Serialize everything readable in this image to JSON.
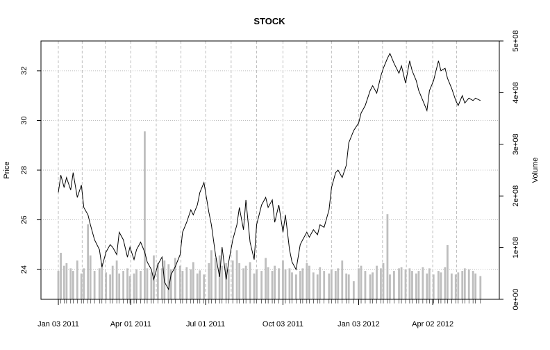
{
  "chart_data": {
    "type": "line",
    "title": "STOCK",
    "ylabel": "Price",
    "y2label": "Volume",
    "xlim": [
      "2011-01-03",
      "2012-05-31"
    ],
    "ylim": [
      22.8,
      33.2
    ],
    "y2lim": [
      0,
      500000000
    ],
    "grid": true,
    "yticks": [
      24,
      26,
      28,
      30,
      32
    ],
    "y2ticks": [
      {
        "value": 0,
        "label": "0e+00"
      },
      {
        "value": 100000000,
        "label": "1e+08"
      },
      {
        "value": 200000000,
        "label": "2e+08"
      },
      {
        "value": 300000000,
        "label": "3e+08"
      },
      {
        "value": 400000000,
        "label": "4e+08"
      },
      {
        "value": 500000000,
        "label": "5e+08"
      }
    ],
    "xticks": [
      {
        "date": "2011-01-03",
        "label": "Jan 03 2011"
      },
      {
        "date": "2011-04-01",
        "label": "Apr 01 2011"
      },
      {
        "date": "2011-07-01",
        "label": "Jul 01 2011"
      },
      {
        "date": "2011-10-03",
        "label": "Oct 03 2011"
      },
      {
        "date": "2012-01-03",
        "label": "Jan 03 2012"
      },
      {
        "date": "2012-04-02",
        "label": "Apr 02 2012"
      }
    ],
    "minor_grid_dates": [
      "2011-02-01",
      "2011-03-01",
      "2011-05-02",
      "2011-06-01",
      "2011-08-01",
      "2011-09-01",
      "2011-11-01",
      "2011-12-01",
      "2012-02-01",
      "2012-03-01",
      "2012-05-01"
    ],
    "colors": {
      "price": "#000000",
      "volume": "#bebebe",
      "grid": "#bebebe"
    },
    "series": [
      {
        "key": "price",
        "x": [
          "2011-01-03",
          "2011-01-06",
          "2011-01-10",
          "2011-01-13",
          "2011-01-18",
          "2011-01-21",
          "2011-01-26",
          "2011-01-31",
          "2011-02-03",
          "2011-02-08",
          "2011-02-11",
          "2011-02-16",
          "2011-02-22",
          "2011-02-25",
          "2011-03-02",
          "2011-03-07",
          "2011-03-10",
          "2011-03-15",
          "2011-03-18",
          "2011-03-23",
          "2011-03-28",
          "2011-03-31",
          "2011-04-05",
          "2011-04-08",
          "2011-04-13",
          "2011-04-18",
          "2011-04-21",
          "2011-04-26",
          "2011-04-29",
          "2011-05-04",
          "2011-05-09",
          "2011-05-12",
          "2011-05-17",
          "2011-05-20",
          "2011-05-25",
          "2011-05-31",
          "2011-06-03",
          "2011-06-08",
          "2011-06-13",
          "2011-06-16",
          "2011-06-21",
          "2011-06-24",
          "2011-06-29",
          "2011-07-05",
          "2011-07-08",
          "2011-07-13",
          "2011-07-18",
          "2011-07-21",
          "2011-07-26",
          "2011-07-29",
          "2011-08-03",
          "2011-08-08",
          "2011-08-11",
          "2011-08-16",
          "2011-08-19",
          "2011-08-24",
          "2011-08-29",
          "2011-09-01",
          "2011-09-07",
          "2011-09-12",
          "2011-09-15",
          "2011-09-20",
          "2011-09-23",
          "2011-09-28",
          "2011-10-03",
          "2011-10-06",
          "2011-10-11",
          "2011-10-14",
          "2011-10-19",
          "2011-10-24",
          "2011-10-27",
          "2011-11-01",
          "2011-11-04",
          "2011-11-09",
          "2011-11-14",
          "2011-11-17",
          "2011-11-22",
          "2011-11-28",
          "2011-12-01",
          "2011-12-06",
          "2011-12-09",
          "2011-12-14",
          "2011-12-19",
          "2011-12-22",
          "2011-12-28",
          "2012-01-03",
          "2012-01-06",
          "2012-01-11",
          "2012-01-17",
          "2012-01-20",
          "2012-01-25",
          "2012-01-30",
          "2012-02-02",
          "2012-02-07",
          "2012-02-10",
          "2012-02-15",
          "2012-02-21",
          "2012-02-24",
          "2012-02-29",
          "2012-03-05",
          "2012-03-08",
          "2012-03-13",
          "2012-03-16",
          "2012-03-21",
          "2012-03-26",
          "2012-03-29",
          "2012-04-03",
          "2012-04-09",
          "2012-04-12",
          "2012-04-17",
          "2012-04-20",
          "2012-04-25",
          "2012-04-30",
          "2012-05-03",
          "2012-05-08",
          "2012-05-11",
          "2012-05-16",
          "2012-05-21",
          "2012-05-24",
          "2012-05-30"
        ],
        "values": [
          27.1,
          27.8,
          27.3,
          27.7,
          27.2,
          27.9,
          26.9,
          27.4,
          26.5,
          26.2,
          25.8,
          25.2,
          24.8,
          24.1,
          24.7,
          25.0,
          24.9,
          24.6,
          25.5,
          25.2,
          24.5,
          24.9,
          24.4,
          24.8,
          25.1,
          24.7,
          24.3,
          24.0,
          23.6,
          24.2,
          24.5,
          23.5,
          23.2,
          23.8,
          24.1,
          24.6,
          25.5,
          25.9,
          26.4,
          26.2,
          26.6,
          27.1,
          27.5,
          26.3,
          25.8,
          24.6,
          23.7,
          24.9,
          23.6,
          24.3,
          25.2,
          25.8,
          26.5,
          25.6,
          26.8,
          25.1,
          24.4,
          25.8,
          26.6,
          26.9,
          26.5,
          26.8,
          25.9,
          26.6,
          25.5,
          26.2,
          24.8,
          24.3,
          24.0,
          25.0,
          25.2,
          25.5,
          25.3,
          25.6,
          25.4,
          25.8,
          25.7,
          26.4,
          27.3,
          27.9,
          28.0,
          27.7,
          28.2,
          29.1,
          29.6,
          29.9,
          30.3,
          30.6,
          31.2,
          31.4,
          31.1,
          31.8,
          32.1,
          32.5,
          32.7,
          32.3,
          31.9,
          32.2,
          31.5,
          32.4,
          32.0,
          31.6,
          31.2,
          30.8,
          30.4,
          31.2,
          31.6,
          32.4,
          32.0,
          32.1,
          31.7,
          31.3,
          30.8,
          30.6,
          31.0,
          30.7,
          30.9,
          30.8,
          30.9,
          30.8
        ]
      },
      {
        "key": "volume",
        "x": [
          "2011-01-03",
          "2011-01-06",
          "2011-01-10",
          "2011-01-13",
          "2011-01-18",
          "2011-01-21",
          "2011-01-26",
          "2011-01-31",
          "2011-02-03",
          "2011-02-08",
          "2011-02-11",
          "2011-02-16",
          "2011-02-22",
          "2011-02-25",
          "2011-03-02",
          "2011-03-07",
          "2011-03-10",
          "2011-03-15",
          "2011-03-18",
          "2011-03-23",
          "2011-03-28",
          "2011-03-31",
          "2011-04-05",
          "2011-04-08",
          "2011-04-13",
          "2011-04-18",
          "2011-04-21",
          "2011-04-26",
          "2011-04-29",
          "2011-05-04",
          "2011-05-09",
          "2011-05-12",
          "2011-05-17",
          "2011-05-20",
          "2011-05-25",
          "2011-05-31",
          "2011-06-03",
          "2011-06-08",
          "2011-06-13",
          "2011-06-16",
          "2011-06-21",
          "2011-06-24",
          "2011-06-29",
          "2011-07-05",
          "2011-07-08",
          "2011-07-13",
          "2011-07-18",
          "2011-07-21",
          "2011-07-26",
          "2011-07-29",
          "2011-08-03",
          "2011-08-08",
          "2011-08-11",
          "2011-08-16",
          "2011-08-19",
          "2011-08-24",
          "2011-08-29",
          "2011-09-01",
          "2011-09-07",
          "2011-09-12",
          "2011-09-15",
          "2011-09-20",
          "2011-09-23",
          "2011-09-28",
          "2011-10-03",
          "2011-10-06",
          "2011-10-11",
          "2011-10-14",
          "2011-10-19",
          "2011-10-24",
          "2011-10-27",
          "2011-11-01",
          "2011-11-04",
          "2011-11-09",
          "2011-11-14",
          "2011-11-17",
          "2011-11-22",
          "2011-11-28",
          "2011-12-01",
          "2011-12-06",
          "2011-12-09",
          "2011-12-14",
          "2011-12-19",
          "2011-12-22",
          "2011-12-28",
          "2012-01-03",
          "2012-01-06",
          "2012-01-11",
          "2012-01-17",
          "2012-01-20",
          "2012-01-25",
          "2012-01-30",
          "2012-02-02",
          "2012-02-07",
          "2012-02-10",
          "2012-02-15",
          "2012-02-21",
          "2012-02-24",
          "2012-02-29",
          "2012-03-05",
          "2012-03-08",
          "2012-03-13",
          "2012-03-16",
          "2012-03-21",
          "2012-03-26",
          "2012-03-29",
          "2012-04-03",
          "2012-04-09",
          "2012-04-12",
          "2012-04-17",
          "2012-04-20",
          "2012-04-25",
          "2012-04-30",
          "2012-05-03",
          "2012-05-08",
          "2012-05-11",
          "2012-05-16",
          "2012-05-21",
          "2012-05-24",
          "2012-05-30"
        ],
        "values": [
          55000000,
          90000000,
          65000000,
          70000000,
          60000000,
          55000000,
          75000000,
          50000000,
          60000000,
          145000000,
          85000000,
          55000000,
          60000000,
          70000000,
          52000000,
          48000000,
          65000000,
          75000000,
          50000000,
          55000000,
          60000000,
          45000000,
          50000000,
          58000000,
          55000000,
          325000000,
          60000000,
          52000000,
          85000000,
          70000000,
          60000000,
          75000000,
          68000000,
          58000000,
          80000000,
          65000000,
          55000000,
          62000000,
          58000000,
          72000000,
          50000000,
          56000000,
          48000000,
          70000000,
          95000000,
          80000000,
          85000000,
          65000000,
          70000000,
          58000000,
          75000000,
          95000000,
          70000000,
          60000000,
          65000000,
          72000000,
          50000000,
          58000000,
          55000000,
          80000000,
          62000000,
          55000000,
          65000000,
          60000000,
          75000000,
          58000000,
          60000000,
          52000000,
          48000000,
          55000000,
          60000000,
          70000000,
          65000000,
          52000000,
          48000000,
          62000000,
          55000000,
          50000000,
          58000000,
          55000000,
          60000000,
          75000000,
          50000000,
          48000000,
          35000000,
          60000000,
          65000000,
          55000000,
          48000000,
          52000000,
          65000000,
          60000000,
          70000000,
          165000000,
          48000000,
          55000000,
          60000000,
          62000000,
          58000000,
          60000000,
          55000000,
          50000000,
          55000000,
          62000000,
          50000000,
          60000000,
          48000000,
          55000000,
          52000000,
          62000000,
          105000000,
          50000000,
          48000000,
          52000000,
          55000000,
          60000000,
          58000000,
          55000000,
          50000000,
          45000000
        ]
      }
    ]
  }
}
